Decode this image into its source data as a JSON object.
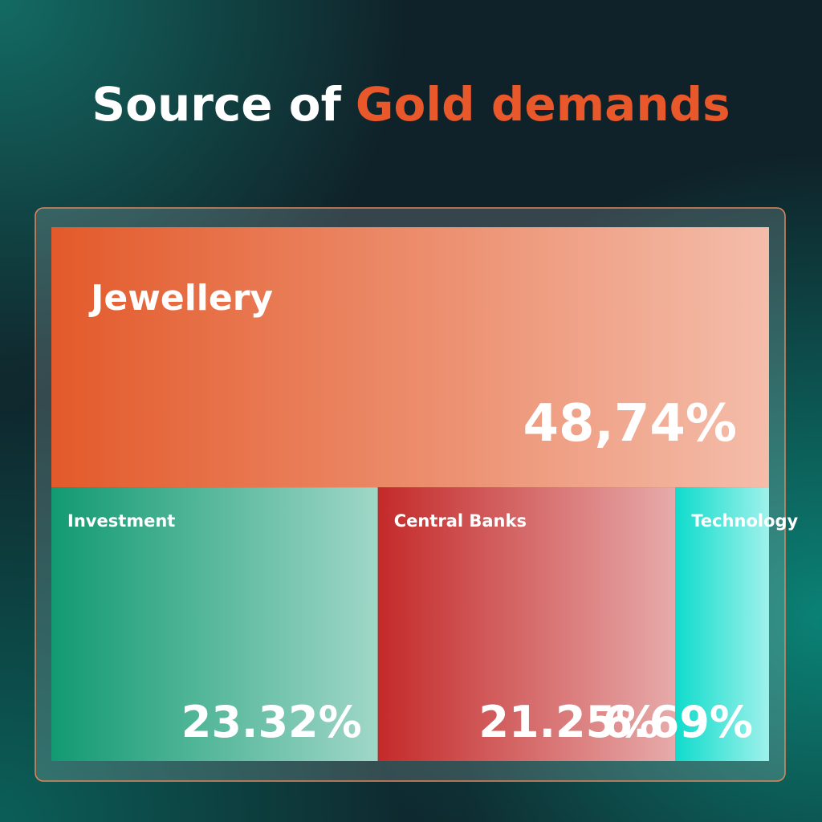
{
  "chart_data": {
    "type": "treemap",
    "title": [
      "Source of",
      "Gold demands"
    ],
    "title_colors": [
      "#ffffff",
      "#e8582a"
    ],
    "categories": [
      "Jewellery",
      "Investment",
      "Central Banks",
      "Technology"
    ],
    "values": [
      48.74,
      23.32,
      21.25,
      6.69
    ],
    "value_labels": [
      "48,74%",
      "23.32%",
      "21.25%",
      "6.69%"
    ],
    "colors": [
      "#e35a2b",
      "#129a72",
      "#c42a2a",
      "#0fdccc"
    ]
  }
}
